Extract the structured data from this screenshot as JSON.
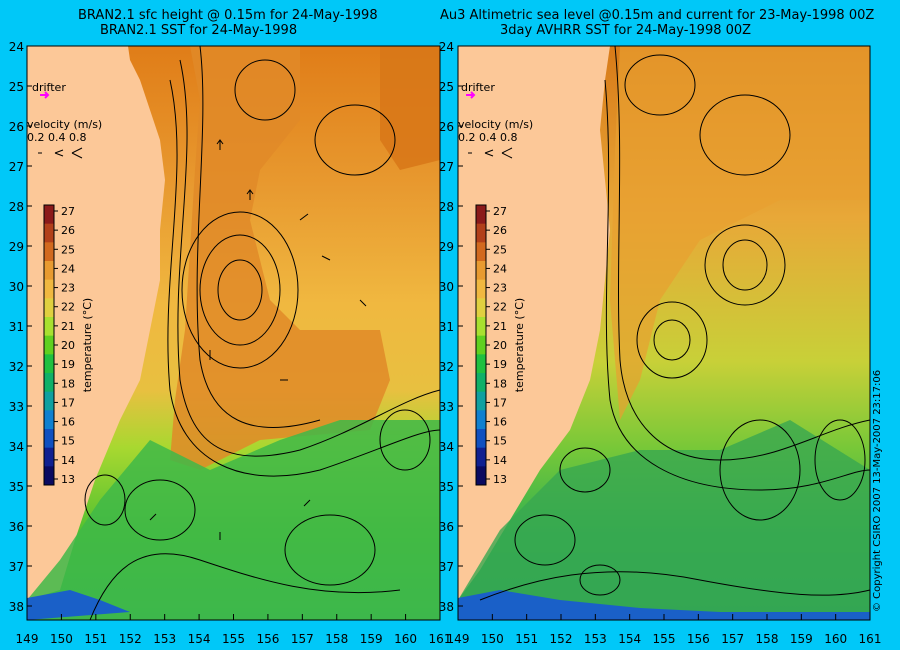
{
  "left_panel": {
    "title_line1": "BRAN2.1 sfc height @ 0.15m for 24-May-1998",
    "title_line2": "BRAN2.1 SST for 24-May-1998"
  },
  "right_panel": {
    "title_line1": "Au3 Altimetric sea level  @0.15m and current for 23-May-1998 00Z",
    "title_line2": "3day AVHRR SST for 24-May-1998 00Z"
  },
  "y_ticks": [
    "24",
    "25",
    "26",
    "27",
    "28",
    "29",
    "30",
    "31",
    "32",
    "33",
    "34",
    "35",
    "36",
    "37",
    "38"
  ],
  "x_ticks": [
    "149",
    "150",
    "151",
    "152",
    "153",
    "154",
    "155",
    "156",
    "157",
    "158",
    "159",
    "160",
    "161"
  ],
  "drifter_label": "drifter",
  "velocity": {
    "label": "velocity (m/s)",
    "values": "0.2 0.4 0.8"
  },
  "colorbar": {
    "ticks": [
      "27",
      "26",
      "25",
      "24",
      "23",
      "22",
      "21",
      "20",
      "19",
      "18",
      "17",
      "16",
      "15",
      "14",
      "13"
    ],
    "title": "temperature (°C)",
    "colors": [
      "#8b1a1a",
      "#b2401a",
      "#d2691e",
      "#e89a30",
      "#f0b840",
      "#e0d040",
      "#a8e030",
      "#60d020",
      "#20c040",
      "#10b068",
      "#10a0a0",
      "#1080d0",
      "#1050c0",
      "#102090",
      "#0a0a60"
    ]
  },
  "copyright": "© Copyright CSIRO 2007 13-May-2007 23:17:06"
}
